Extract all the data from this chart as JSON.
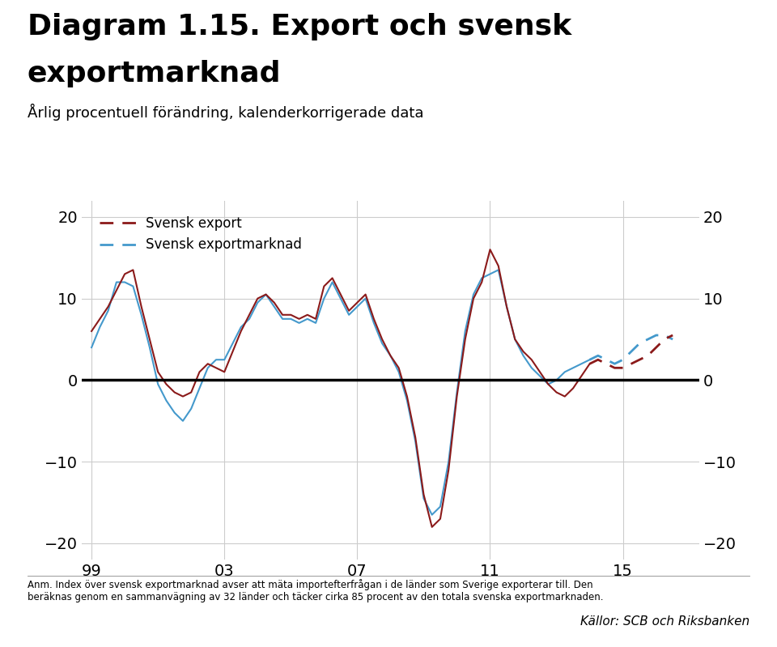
{
  "title_line1": "Diagram 1.15. Export och svensk",
  "title_line2": "exportmarknad",
  "title_sub": "Årlig procentuell förändring, kalenderkorrigerade data",
  "legend_export": "Svensk export",
  "legend_exportmarknad": "Svensk exportmarknad",
  "footnote": "Anm. Index över svensk exportmarknad avser att mäta importefterfrågan i de länder som Sverige exporterar till. Den\nberäknas genom en sammanvägning av 32 länder och täcker cirka 85 procent av den totala svenska exportmarknaden.",
  "source": "Källor: SCB och Riksbanken",
  "color_export": "#8B1A1A",
  "color_exportmarknad": "#4499CC",
  "ylim": [
    -22,
    22
  ],
  "yticks": [
    -20,
    -10,
    0,
    10,
    20
  ],
  "xticks": [
    1999,
    2003,
    2007,
    2011,
    2015
  ],
  "xticklabels": [
    "99",
    "03",
    "07",
    "11",
    "15"
  ],
  "bg_color": "#FFFFFF",
  "x_export": [
    1999.0,
    1999.25,
    1999.5,
    1999.75,
    2000.0,
    2000.25,
    2000.5,
    2000.75,
    2001.0,
    2001.25,
    2001.5,
    2001.75,
    2002.0,
    2002.25,
    2002.5,
    2002.75,
    2003.0,
    2003.25,
    2003.5,
    2003.75,
    2004.0,
    2004.25,
    2004.5,
    2004.75,
    2005.0,
    2005.25,
    2005.5,
    2005.75,
    2006.0,
    2006.25,
    2006.5,
    2006.75,
    2007.0,
    2007.25,
    2007.5,
    2007.75,
    2008.0,
    2008.25,
    2008.5,
    2008.75,
    2009.0,
    2009.25,
    2009.5,
    2009.75,
    2010.0,
    2010.25,
    2010.5,
    2010.75,
    2011.0,
    2011.25,
    2011.5,
    2011.75,
    2012.0,
    2012.25,
    2012.5,
    2012.75,
    2013.0,
    2013.25,
    2013.5,
    2013.75,
    2014.0,
    2014.25,
    2014.5,
    2014.75,
    2015.0,
    2015.25,
    2015.5,
    2015.75,
    2016.0,
    2016.25,
    2016.5
  ],
  "y_export": [
    6.0,
    7.5,
    9.0,
    11.0,
    13.0,
    13.5,
    9.0,
    5.0,
    1.0,
    -0.5,
    -1.5,
    -2.0,
    -1.5,
    1.0,
    2.0,
    1.5,
    1.0,
    3.5,
    6.0,
    8.0,
    10.0,
    10.5,
    9.5,
    8.0,
    8.0,
    7.5,
    8.0,
    7.5,
    11.5,
    12.5,
    10.5,
    8.5,
    9.5,
    10.5,
    7.5,
    5.0,
    3.0,
    1.5,
    -2.0,
    -7.0,
    -14.0,
    -18.0,
    -17.0,
    -11.0,
    -2.0,
    5.0,
    10.0,
    12.0,
    16.0,
    14.0,
    9.0,
    5.0,
    3.5,
    2.5,
    1.0,
    -0.5,
    -1.5,
    -2.0,
    -1.0,
    0.5,
    2.0,
    2.5,
    2.0,
    1.5,
    1.5,
    2.0,
    2.5,
    3.0,
    4.0,
    5.0,
    5.5
  ],
  "x_exportmarknad": [
    1999.0,
    1999.25,
    1999.5,
    1999.75,
    2000.0,
    2000.25,
    2000.5,
    2000.75,
    2001.0,
    2001.25,
    2001.5,
    2001.75,
    2002.0,
    2002.25,
    2002.5,
    2002.75,
    2003.0,
    2003.25,
    2003.5,
    2003.75,
    2004.0,
    2004.25,
    2004.5,
    2004.75,
    2005.0,
    2005.25,
    2005.5,
    2005.75,
    2006.0,
    2006.25,
    2006.5,
    2006.75,
    2007.0,
    2007.25,
    2007.5,
    2007.75,
    2008.0,
    2008.25,
    2008.5,
    2008.75,
    2009.0,
    2009.25,
    2009.5,
    2009.75,
    2010.0,
    2010.25,
    2010.5,
    2010.75,
    2011.0,
    2011.25,
    2011.5,
    2011.75,
    2012.0,
    2012.25,
    2012.5,
    2012.75,
    2013.0,
    2013.25,
    2013.5,
    2013.75,
    2014.0,
    2014.25,
    2014.5,
    2014.75,
    2015.0,
    2015.25,
    2015.5,
    2015.75,
    2016.0,
    2016.25,
    2016.5
  ],
  "y_exportmarknad": [
    4.0,
    6.5,
    8.5,
    12.0,
    12.0,
    11.5,
    8.0,
    4.0,
    -0.5,
    -2.5,
    -4.0,
    -5.0,
    -3.5,
    -1.0,
    1.5,
    2.5,
    2.5,
    4.5,
    6.5,
    7.5,
    9.5,
    10.5,
    9.0,
    7.5,
    7.5,
    7.0,
    7.5,
    7.0,
    10.0,
    12.0,
    10.0,
    8.0,
    9.0,
    10.0,
    7.0,
    4.5,
    3.0,
    1.0,
    -2.5,
    -7.5,
    -14.5,
    -16.5,
    -15.5,
    -10.0,
    -1.5,
    6.0,
    10.5,
    12.5,
    13.0,
    13.5,
    9.0,
    5.0,
    3.0,
    1.5,
    0.5,
    -0.5,
    0.0,
    1.0,
    1.5,
    2.0,
    2.5,
    3.0,
    2.5,
    2.0,
    2.5,
    3.5,
    4.5,
    5.0,
    5.5,
    5.5,
    5.0
  ],
  "x_split": 2014.0
}
